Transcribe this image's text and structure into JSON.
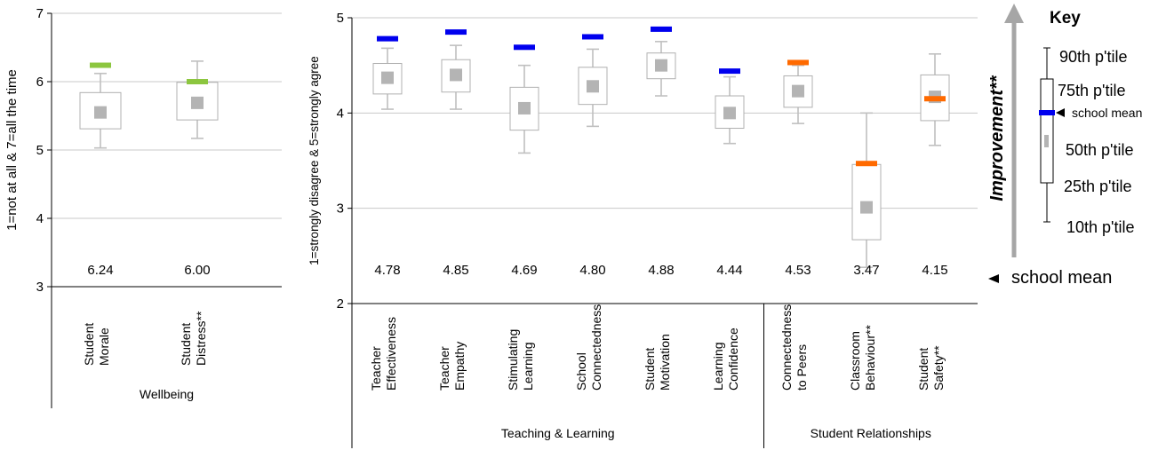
{
  "chart_data": [
    {
      "type": "box",
      "ylabel": "1=not at all & 7=all the time",
      "ylim": [
        3,
        7
      ],
      "yticks": [
        3,
        4,
        5,
        6,
        7
      ],
      "grid": true,
      "categories": [
        "Student Morale",
        "Student Distress**"
      ],
      "category_lines": [
        [
          "Student",
          "Morale"
        ],
        [
          "Student",
          "Distress**"
        ]
      ],
      "groups": [
        {
          "label": "Wellbeing",
          "count": 2
        }
      ],
      "series": [
        {
          "category": "Student Morale",
          "p10": 5.03,
          "p25": 5.31,
          "p50": 5.55,
          "p75": 5.84,
          "p90": 6.12,
          "school_mean": 6.24,
          "school_mean_label": "6.24",
          "mean_color": "#8cc63f"
        },
        {
          "category": "Student Distress**",
          "p10": 5.17,
          "p25": 5.44,
          "p50": 5.69,
          "p75": 5.99,
          "p90": 6.3,
          "school_mean": 6.0,
          "school_mean_label": "6.00",
          "mean_color": "#8cc63f"
        }
      ]
    },
    {
      "type": "box",
      "ylabel": "1=strongly disagree & 5=strongly agree",
      "ylim": [
        2,
        5
      ],
      "yticks": [
        2,
        3,
        4,
        5
      ],
      "grid": true,
      "categories": [
        "Teacher Effectiveness",
        "Teacher Empathy",
        "Stimulating Learning",
        "School Connectedness",
        "Student Motivation",
        "Learning Confidence",
        "Connectedness to Peers",
        "Classroom Behaviour**",
        "Student Safety**"
      ],
      "category_lines": [
        [
          "Teacher",
          "Effectiveness"
        ],
        [
          "Teacher",
          "Empathy"
        ],
        [
          "Stimulating",
          "Learning"
        ],
        [
          "School",
          "Connectedness"
        ],
        [
          "Student",
          "Motivation"
        ],
        [
          "Learning",
          "Confidence"
        ],
        [
          "Connectedness",
          "to Peers"
        ],
        [
          "Classroom",
          "Behaviour**"
        ],
        [
          "Student",
          "Safety**"
        ]
      ],
      "groups": [
        {
          "label": "Teaching & Learning",
          "count": 6
        },
        {
          "label": "Student Relationships",
          "count": 3
        }
      ],
      "series": [
        {
          "category": "Teacher Effectiveness",
          "p10": 4.04,
          "p25": 4.2,
          "p50": 4.37,
          "p75": 4.52,
          "p90": 4.68,
          "school_mean": 4.78,
          "school_mean_label": "4.78",
          "mean_color": "#0000ee"
        },
        {
          "category": "Teacher Empathy",
          "p10": 4.04,
          "p25": 4.22,
          "p50": 4.4,
          "p75": 4.56,
          "p90": 4.71,
          "school_mean": 4.85,
          "school_mean_label": "4.85",
          "mean_color": "#0000ee"
        },
        {
          "category": "Stimulating Learning",
          "p10": 3.58,
          "p25": 3.82,
          "p50": 4.05,
          "p75": 4.27,
          "p90": 4.5,
          "school_mean": 4.69,
          "school_mean_label": "4.69",
          "mean_color": "#0000ee"
        },
        {
          "category": "School Connectedness",
          "p10": 3.86,
          "p25": 4.09,
          "p50": 4.28,
          "p75": 4.48,
          "p90": 4.67,
          "school_mean": 4.8,
          "school_mean_label": "4.80",
          "mean_color": "#0000ee"
        },
        {
          "category": "Student Motivation",
          "p10": 4.18,
          "p25": 4.36,
          "p50": 4.5,
          "p75": 4.63,
          "p90": 4.75,
          "school_mean": 4.88,
          "school_mean_label": "4.88",
          "mean_color": "#0000ee"
        },
        {
          "category": "Learning Confidence",
          "p10": 3.68,
          "p25": 3.84,
          "p50": 4.0,
          "p75": 4.18,
          "p90": 4.38,
          "school_mean": 4.44,
          "school_mean_label": "4.44",
          "mean_color": "#0000ee"
        },
        {
          "category": "Connectedness to Peers",
          "p10": 3.89,
          "p25": 4.06,
          "p50": 4.23,
          "p75": 4.39,
          "p90": 4.5,
          "school_mean": 4.53,
          "school_mean_label": "4.53",
          "mean_color": "#ff6a00"
        },
        {
          "category": "Classroom Behaviour**",
          "p10": 2.38,
          "p25": 2.67,
          "p50": 3.01,
          "p75": 3.46,
          "p90": 4.0,
          "school_mean": 3.47,
          "school_mean_label": "3.47",
          "mean_color": "#ff6a00"
        },
        {
          "category": "Student Safety**",
          "p10": 3.66,
          "p25": 3.92,
          "p50": 4.17,
          "p75": 4.4,
          "p90": 4.62,
          "school_mean": 4.15,
          "school_mean_label": "4.15",
          "mean_color": "#ff6a00"
        }
      ]
    }
  ],
  "school_mean_row_label": "school mean",
  "improvement_label": "Improvement**",
  "key": {
    "title": "Key",
    "p90": "90th p'tile",
    "p75": "75th p'tile",
    "mean": "school mean",
    "p50": "50th p'tile",
    "p25": "25th p'tile",
    "p10": "10th p'tile"
  },
  "colors": {
    "grid": "#c8c8c8",
    "whisker": "#c0c0c0",
    "median": "#b4b4b4",
    "box_stroke": "#b0b0b0",
    "arrow": "#a6a6a6",
    "key_mean": "#0000ee"
  }
}
